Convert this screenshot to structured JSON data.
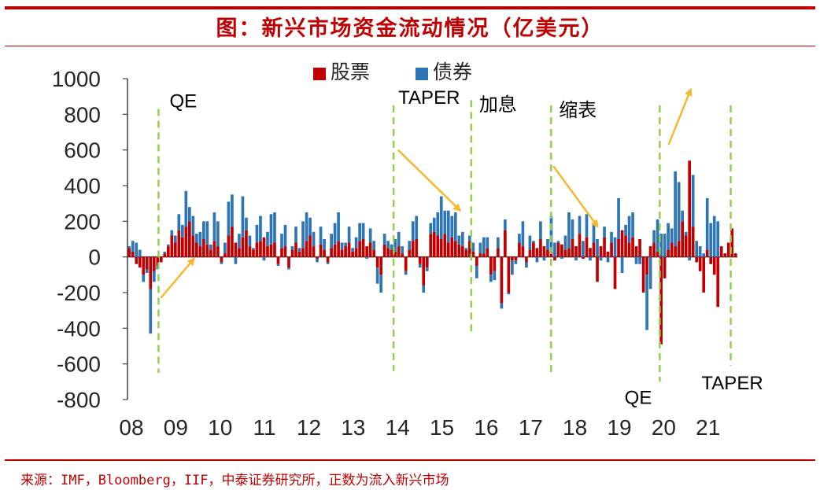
{
  "title": "图：新兴市场资金流动情况（亿美元）",
  "source": "来源：IMF，Bloomberg，IIF，中泰证券研究所，正数为流入新兴市场",
  "colors": {
    "equity": "#c00000",
    "bond": "#2e75b6",
    "event": "#92d050",
    "arrow": "#f5b82e",
    "axis": "#404040",
    "brand": "#c00000"
  },
  "chart_data": {
    "type": "bar",
    "stacked": true,
    "title": "图：新兴市场资金流动情况（亿美元）",
    "legend": {
      "position": "top-center",
      "entries": [
        "股票",
        "债券"
      ]
    },
    "ylim": [
      -800,
      1000
    ],
    "yticks": [
      1000,
      800,
      600,
      400,
      200,
      0,
      -200,
      -400,
      -600,
      -800
    ],
    "xticks": [
      "08",
      "09",
      "10",
      "11",
      "12",
      "13",
      "14",
      "15",
      "16",
      "17",
      "18",
      "19",
      "20",
      "21"
    ],
    "x_start_year": 2008.0,
    "x_end_year": 2021.75,
    "bar_step_years": 0.0833,
    "series": [
      {
        "name": "股票",
        "values": [
          50,
          30,
          -40,
          -60,
          -100,
          -70,
          -180,
          -80,
          -50,
          -30,
          20,
          60,
          120,
          80,
          150,
          110,
          170,
          200,
          120,
          80,
          60,
          100,
          70,
          40,
          90,
          60,
          -30,
          20,
          120,
          170,
          80,
          50,
          110,
          150,
          60,
          40,
          80,
          90,
          110,
          60,
          70,
          80,
          -40,
          50,
          60,
          -60,
          40,
          80,
          30,
          50,
          90,
          120,
          60,
          -10,
          70,
          40,
          -30,
          50,
          70,
          90,
          40,
          60,
          80,
          30,
          50,
          90,
          100,
          60,
          80,
          40,
          -60,
          -100,
          70,
          50,
          40,
          30,
          60,
          20,
          -80,
          40,
          90,
          100,
          -40,
          -160,
          -60,
          130,
          140,
          120,
          100,
          130,
          80,
          110,
          90,
          70,
          60,
          40,
          90,
          30,
          -50,
          20,
          20,
          50,
          -100,
          -80,
          50,
          -260,
          150,
          -200,
          -20,
          -20,
          80,
          60,
          -30,
          40,
          80,
          50,
          100,
          60,
          40,
          30,
          -20,
          80,
          70,
          40,
          50,
          100,
          60,
          130,
          -10,
          110,
          50,
          80,
          -140,
          60,
          110,
          30,
          80,
          -180,
          100,
          150,
          120,
          80,
          110,
          60,
          100,
          -200,
          -100,
          60,
          80,
          30,
          -490,
          -120,
          40,
          80,
          60,
          90,
          200,
          120,
          540,
          170,
          -30,
          -80,
          -200,
          40,
          -40,
          -100,
          -280,
          60,
          20,
          80,
          160,
          20
        ]
      },
      {
        "name": "债券",
        "values": [
          10,
          60,
          80,
          40,
          -40,
          -20,
          -250,
          -60,
          -20,
          0,
          10,
          10,
          30,
          40,
          90,
          70,
          200,
          80,
          110,
          50,
          80,
          100,
          130,
          30,
          160,
          140,
          -10,
          60,
          190,
          180,
          -40,
          80,
          230,
          70,
          60,
          10,
          100,
          140,
          -20,
          80,
          170,
          170,
          -10,
          80,
          120,
          -10,
          20,
          90,
          20,
          150,
          160,
          100,
          80,
          -20,
          100,
          60,
          -10,
          80,
          120,
          160,
          40,
          20,
          90,
          20,
          60,
          100,
          90,
          -10,
          80,
          50,
          -90,
          -100,
          60,
          40,
          30,
          70,
          80,
          40,
          -20,
          50,
          110,
          130,
          -20,
          -40,
          -20,
          60,
          80,
          130,
          240,
          130,
          180,
          120,
          160,
          50,
          80,
          10,
          30,
          50,
          -70,
          60,
          90,
          60,
          -40,
          -50,
          60,
          -30,
          60,
          -10,
          -80,
          -20,
          50,
          140,
          -30,
          80,
          10,
          -30,
          100,
          -20,
          60,
          200,
          80,
          10,
          -10,
          80,
          200,
          110,
          -20,
          100,
          90,
          130,
          -20,
          110,
          100,
          -20,
          60,
          -30,
          60,
          110,
          230,
          -90,
          60,
          150,
          140,
          -40,
          -40,
          0,
          -310,
          -180,
          70,
          180,
          130,
          130,
          150,
          80,
          420,
          330,
          60,
          20,
          -20,
          290,
          90,
          60,
          20,
          290,
          190,
          230,
          200
        ]
      }
    ],
    "event_lines": [
      {
        "label": "QE",
        "year": 2008.7,
        "label_pos": "top",
        "top_value": 830,
        "bottom_value": -650
      },
      {
        "label": "TAPER",
        "year": 2014.0,
        "label_pos": "top",
        "top_value": 850,
        "bottom_value": -640
      },
      {
        "label": "加息",
        "year": 2015.75,
        "label_pos": "top-right",
        "top_value": 880,
        "bottom_value": -420
      },
      {
        "label": "缩表",
        "year": 2017.55,
        "label_pos": "top-right",
        "top_value": 850,
        "bottom_value": -670
      },
      {
        "label": "QE",
        "year": 2020.0,
        "label_pos": "bottom-left",
        "top_value": 850,
        "bottom_value": -700
      },
      {
        "label": "TAPER",
        "year": 2021.6,
        "label_pos": "bottom-below",
        "top_value": 850,
        "bottom_value": -610
      }
    ],
    "annotation_arrows": [
      {
        "from": [
          2008.75,
          -230
        ],
        "to": [
          2009.5,
          -10
        ]
      },
      {
        "from": [
          2014.1,
          600
        ],
        "to": [
          2015.5,
          260
        ]
      },
      {
        "from": [
          2017.6,
          510
        ],
        "to": [
          2018.6,
          170
        ]
      },
      {
        "from": [
          2020.2,
          630
        ],
        "to": [
          2020.7,
          940
        ]
      }
    ]
  }
}
